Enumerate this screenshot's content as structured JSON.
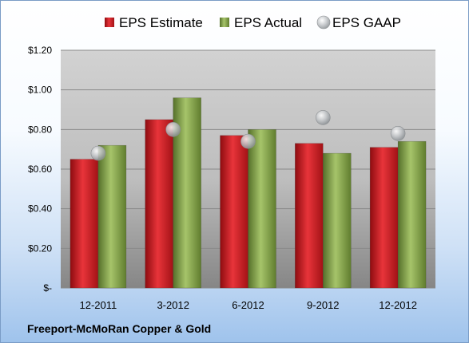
{
  "chart_data": {
    "type": "bar",
    "categories": [
      "12-2011",
      "3-2012",
      "6-2012",
      "9-2012",
      "12-2012"
    ],
    "series": [
      {
        "name": "EPS Estimate",
        "kind": "bar",
        "color": "#c0171c",
        "values": [
          0.65,
          0.85,
          0.77,
          0.73,
          0.71
        ]
      },
      {
        "name": "EPS Actual",
        "kind": "bar",
        "color": "#7a9a3a",
        "values": [
          0.72,
          0.96,
          0.8,
          0.68,
          0.74
        ]
      },
      {
        "name": "EPS GAAP",
        "kind": "marker",
        "color": "#b8bcc0",
        "values": [
          0.68,
          0.8,
          0.74,
          0.86,
          0.78
        ]
      }
    ],
    "yticks": [
      {
        "value": 0,
        "label": "$-"
      },
      {
        "value": 0.2,
        "label": "$0.20"
      },
      {
        "value": 0.4,
        "label": "$0.40"
      },
      {
        "value": 0.6,
        "label": "$0.60"
      },
      {
        "value": 0.8,
        "label": "$0.80"
      },
      {
        "value": 1.0,
        "label": "$1.00"
      },
      {
        "value": 1.2,
        "label": "$1.20"
      }
    ],
    "ylim": [
      0,
      1.2
    ],
    "grid": true,
    "legend_position": "top"
  },
  "caption": "Freeport-McMoRan Copper & Gold"
}
